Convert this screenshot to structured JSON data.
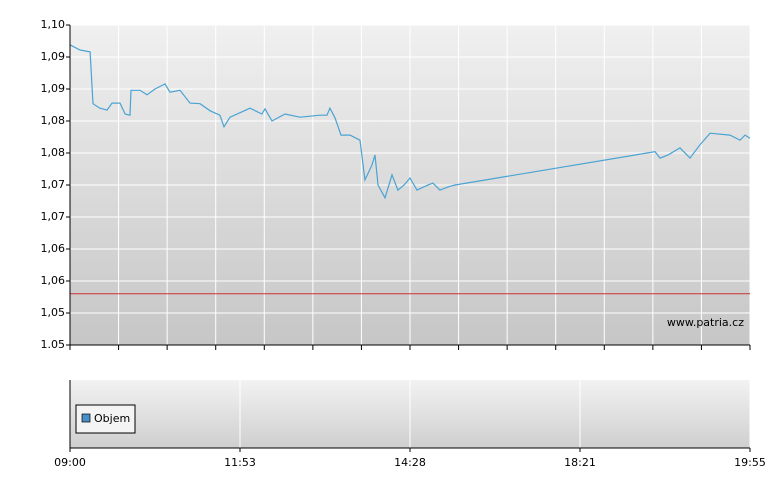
{
  "chart_data": [
    {
      "type": "line",
      "watermark": "www.patria.cz",
      "xlim": [
        0,
        4
      ],
      "ylim": [
        1.05,
        1.1
      ],
      "yticks": [
        {
          "value": 1.1,
          "label": "1,10"
        },
        {
          "value": 1.095,
          "label": "1,09"
        },
        {
          "value": 1.09,
          "label": "1,09"
        },
        {
          "value": 1.085,
          "label": "1,08"
        },
        {
          "value": 1.08,
          "label": "1,08"
        },
        {
          "value": 1.075,
          "label": "1,07"
        },
        {
          "value": 1.07,
          "label": "1,07"
        },
        {
          "value": 1.065,
          "label": "1,06"
        },
        {
          "value": 1.06,
          "label": "1,06"
        },
        {
          "value": 1.055,
          "label": "1,05"
        },
        1.05
      ],
      "grid": true,
      "reference_line": {
        "value": 1.058,
        "color": "#cc3333"
      },
      "series": [
        {
          "color": "#4aa3d3",
          "x": [
            0,
            0.059,
            0.118,
            0.135,
            0.176,
            0.218,
            0.247,
            0.294,
            0.324,
            0.353,
            0.359,
            0.412,
            0.453,
            0.5,
            0.559,
            0.588,
            0.647,
            0.706,
            0.765,
            0.824,
            0.882,
            0.906,
            0.941,
            1.059,
            1.129,
            1.147,
            1.188,
            1.265,
            1.353,
            1.471,
            1.512,
            1.529,
            1.559,
            1.594,
            1.647,
            1.706,
            1.735,
            1.776,
            1.794,
            1.812,
            1.853,
            1.894,
            1.929,
            1.965,
            2,
            2.041,
            2.088,
            2.135,
            2.176,
            2.235,
            2.265,
            3.441,
            3.471,
            3.518,
            3.588,
            3.647,
            3.706,
            3.765,
            3.882,
            3.941,
            3.971,
            4
          ],
          "values": [
            1.0969,
            1.0961,
            1.0958,
            1.0877,
            1.087,
            1.0867,
            1.0878,
            1.0878,
            1.0861,
            1.0859,
            1.0898,
            1.0898,
            1.0891,
            1.09,
            1.0908,
            1.0895,
            1.0898,
            1.0878,
            1.0877,
            1.0866,
            1.0859,
            1.0841,
            1.0856,
            1.087,
            1.0861,
            1.0869,
            1.085,
            1.0861,
            1.0856,
            1.0859,
            1.0859,
            1.087,
            1.0855,
            1.0828,
            1.0828,
            1.082,
            1.0758,
            1.0781,
            1.0797,
            1.075,
            1.073,
            1.0766,
            1.0742,
            1.075,
            1.0761,
            1.0742,
            1.0748,
            1.0753,
            1.0742,
            1.0748,
            1.075,
            1.0802,
            1.0792,
            1.0797,
            1.0808,
            1.0792,
            1.0813,
            1.0831,
            1.0828,
            1.082,
            1.0828,
            1.0823
          ]
        }
      ]
    },
    {
      "type": "bar",
      "xlim": [
        0,
        4
      ],
      "xticks": [
        {
          "value": 0,
          "label": "09:00"
        },
        {
          "value": 1,
          "label": "11:53"
        },
        {
          "value": 2,
          "label": "14:28"
        },
        {
          "value": 3,
          "label": "18:21"
        },
        {
          "value": 4,
          "label": "19:55"
        }
      ],
      "grid": true,
      "series": [
        {
          "name": "Objem",
          "color": "#4a90c8"
        }
      ]
    }
  ]
}
